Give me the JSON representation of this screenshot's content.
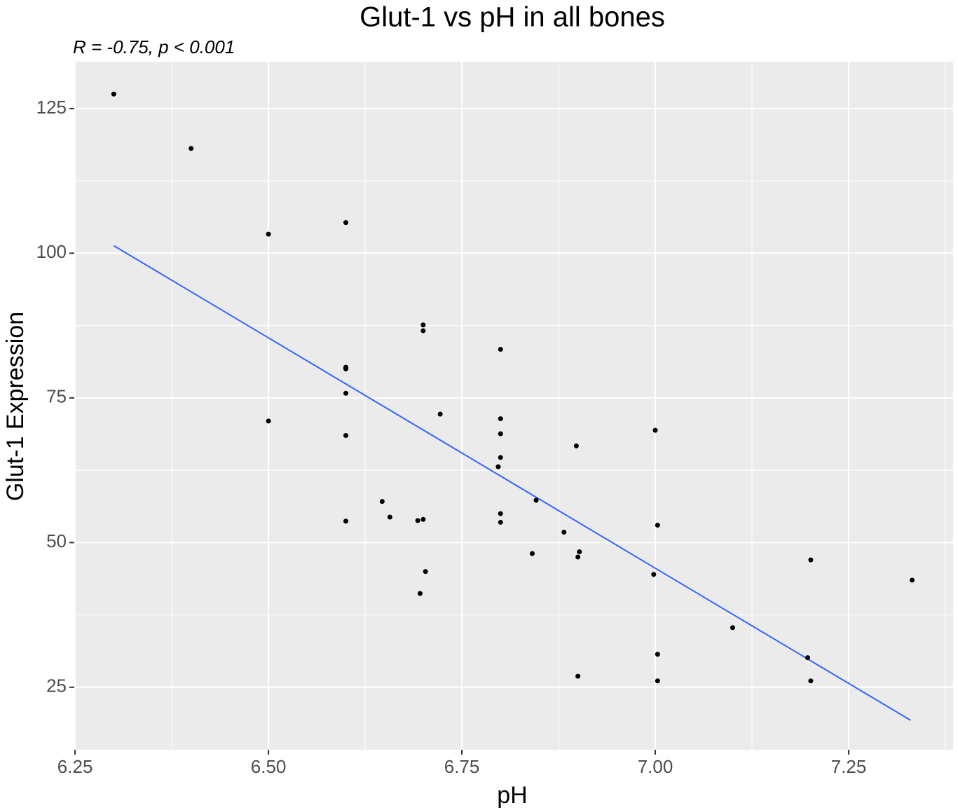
{
  "chart_data": {
    "type": "scatter",
    "title": "Glut-1 vs pH in all bones",
    "annotation": "R = -0.75, p < 0.001",
    "x_label": "pH",
    "y_label": "Glut-1 Expression",
    "xlim": [
      6.249,
      7.385
    ],
    "ylim": [
      14.2,
      133.1
    ],
    "xticks": [
      6.25,
      {
        "value": 6.5,
        "label": "6.50"
      },
      6.75,
      {
        "value": 7.0,
        "label": "7.00"
      },
      7.25
    ],
    "yticks": [
      25,
      50,
      75,
      100,
      125
    ],
    "x_minor_grid": [
      6.375,
      6.625,
      6.875,
      7.125,
      7.375
    ],
    "y_minor_grid": [
      37.5,
      62.5,
      87.5,
      112.5
    ],
    "grid": true,
    "points": {
      "color": "#000000",
      "x": [
        6.3,
        6.4,
        6.5,
        6.6,
        6.7,
        6.7,
        6.8,
        6.6,
        6.6,
        6.6,
        6.5,
        6.722,
        6.8,
        6.8,
        6.6,
        7.0,
        6.898,
        6.8,
        6.797,
        6.647,
        6.846,
        6.657,
        6.693,
        6.7,
        6.6,
        6.8,
        6.8,
        7.003,
        6.882,
        6.841,
        6.902,
        6.9,
        7.201,
        6.703,
        6.998,
        7.332,
        6.696,
        7.1,
        7.003,
        7.197,
        6.9,
        7.003,
        7.201
      ],
      "y": [
        127.5,
        118.1,
        103.3,
        105.3,
        87.6,
        86.6,
        83.4,
        80.3,
        80.0,
        75.8,
        71.0,
        72.2,
        71.4,
        68.8,
        68.5,
        69.4,
        66.7,
        64.7,
        63.1,
        57.1,
        57.3,
        54.4,
        53.8,
        54.0,
        53.7,
        55.0,
        53.5,
        53.0,
        51.8,
        48.1,
        48.4,
        47.5,
        47.0,
        45.0,
        44.5,
        43.5,
        41.2,
        35.3,
        30.7,
        30.1,
        26.9,
        26.1,
        26.1
      ]
    },
    "fit_line": {
      "color": "#3366ff",
      "x": [
        6.3,
        7.33
      ],
      "y": [
        101.3,
        19.3
      ]
    }
  }
}
